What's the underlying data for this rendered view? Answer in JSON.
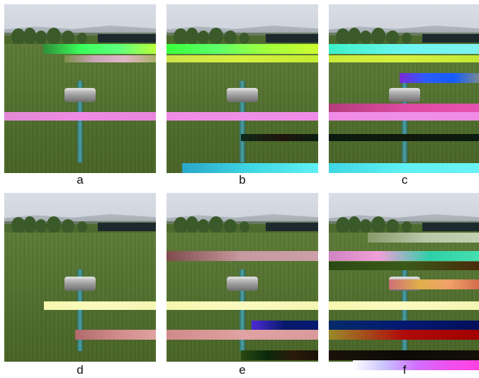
{
  "panels": [
    {
      "label": "a"
    },
    {
      "label": "b"
    },
    {
      "label": "c"
    },
    {
      "label": "d"
    },
    {
      "label": "e"
    },
    {
      "label": "f"
    }
  ],
  "colors": {
    "sky": "#d9dde6",
    "grass": "#557331",
    "pole": "#3f8e8d",
    "disc": "#a0a0a0",
    "tree": "#3b5a2a",
    "fence": "#1c2a2e"
  }
}
